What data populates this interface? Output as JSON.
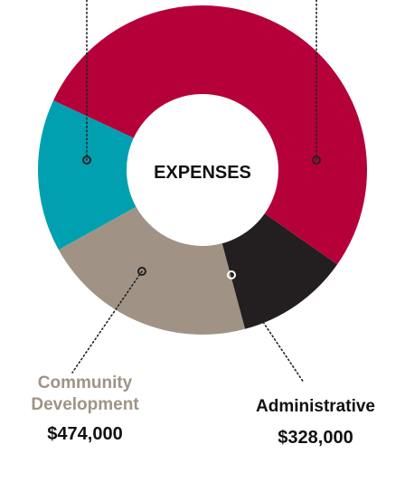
{
  "chart_data": {
    "type": "pie",
    "title": "EXPENSES",
    "categories": [
      "",
      "Community Development",
      "Administrative",
      ""
    ],
    "values": [
      null,
      474000,
      328000,
      null
    ],
    "display_values": [
      "",
      "$474,000",
      "$328,000",
      ""
    ],
    "colors": [
      "#00a0b0",
      "#a09385",
      "#231f20",
      "#b5003a"
    ],
    "donut": true
  }
}
